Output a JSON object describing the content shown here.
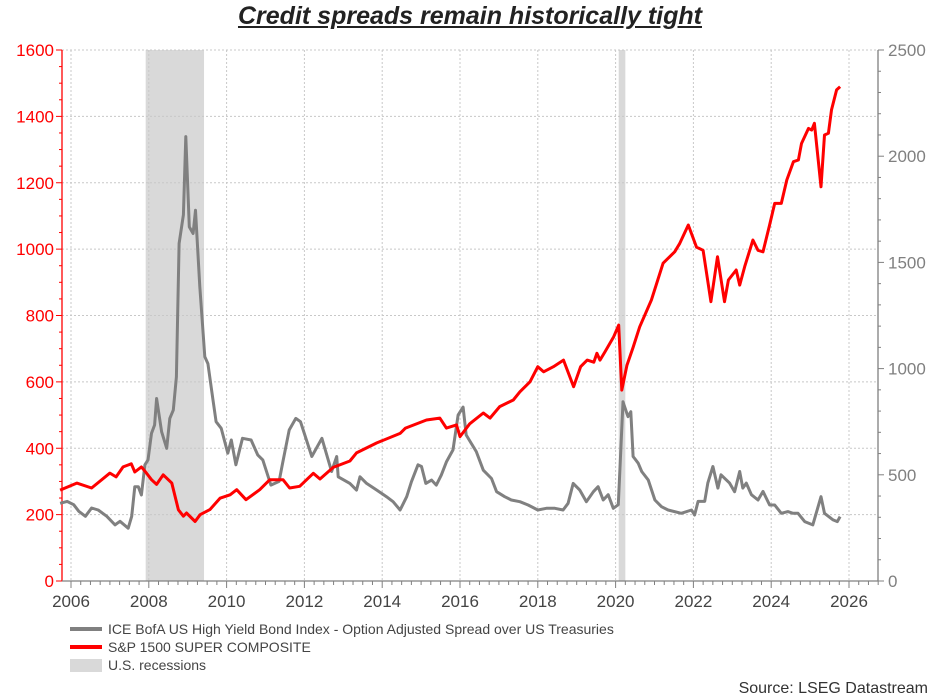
{
  "chart_data": {
    "type": "line",
    "title": "Credit spreads remain historically tight",
    "source": "Source: LSEG Datastream",
    "x_ticks": [
      "2006",
      "2008",
      "2010",
      "2012",
      "2014",
      "2016",
      "2018",
      "2020",
      "2022",
      "2024",
      "2026"
    ],
    "xlim": [
      2005.75,
      2026.8
    ],
    "y_left": {
      "ylim": [
        0,
        1600
      ],
      "ticks": [
        "0",
        "200",
        "400",
        "600",
        "800",
        "1000",
        "1200",
        "1400",
        "1600"
      ],
      "color": "#ff0000"
    },
    "y_right": {
      "ylim": [
        0,
        2500
      ],
      "ticks": [
        "0",
        "500",
        "1000",
        "1500",
        "2000",
        "2500"
      ],
      "color": "#808080"
    },
    "grid": true,
    "legend_placement": "bottom",
    "recessions": [
      {
        "label": "U.S. recessions",
        "start": 2007.92,
        "end": 2009.42,
        "color": "#d9d9d9"
      },
      {
        "start": 2020.08,
        "end": 2020.25
      }
    ],
    "recession_label": "U.S. recessions",
    "series": [
      {
        "name": "ICE BofA US High Yield Bond Index - Option Adjusted Spread over US Treasuries",
        "axis": "left",
        "color": "#808080",
        "x": [
          2005.72,
          2005.9,
          2006.07,
          2006.2,
          2006.37,
          2006.53,
          2006.7,
          2006.92,
          2007.13,
          2007.26,
          2007.47,
          2007.56,
          2007.64,
          2007.73,
          2007.81,
          2007.9,
          2007.98,
          2008.07,
          2008.15,
          2008.2,
          2008.33,
          2008.46,
          2008.54,
          2008.63,
          2008.71,
          2008.78,
          2008.89,
          2008.95,
          2009.04,
          2009.14,
          2009.2,
          2009.31,
          2009.44,
          2009.52,
          2009.65,
          2009.73,
          2009.86,
          2010.03,
          2010.12,
          2010.24,
          2010.41,
          2010.63,
          2010.8,
          2010.93,
          2011.14,
          2011.35,
          2011.44,
          2011.61,
          2011.78,
          2011.9,
          2012.19,
          2012.45,
          2012.7,
          2012.83,
          2012.87,
          2013.17,
          2013.34,
          2013.43,
          2013.6,
          2013.86,
          2014.11,
          2014.28,
          2014.46,
          2014.63,
          2014.75,
          2014.92,
          2015.01,
          2015.12,
          2015.27,
          2015.39,
          2015.52,
          2015.65,
          2015.82,
          2015.95,
          2016.08,
          2016.16,
          2016.42,
          2016.6,
          2016.81,
          2016.94,
          2017.15,
          2017.32,
          2017.54,
          2017.75,
          2018.0,
          2018.22,
          2018.44,
          2018.65,
          2018.78,
          2018.91,
          2019.08,
          2019.25,
          2019.43,
          2019.55,
          2019.68,
          2019.81,
          2019.94,
          2020.07,
          2020.19,
          2020.32,
          2020.39,
          2020.45,
          2020.58,
          2020.67,
          2020.84,
          2021.01,
          2021.18,
          2021.35,
          2021.69,
          2021.95,
          2022.03,
          2022.12,
          2022.29,
          2022.37,
          2022.5,
          2022.63,
          2022.71,
          2022.93,
          2023.06,
          2023.19,
          2023.27,
          2023.36,
          2023.49,
          2023.66,
          2023.79,
          2023.96,
          2024.09,
          2024.26,
          2024.43,
          2024.56,
          2024.69,
          2024.86,
          2025.07,
          2025.28,
          2025.37,
          2025.59,
          2025.7,
          2025.77
        ],
        "values": [
          234,
          240,
          230,
          210,
          195,
          220,
          214,
          195,
          169,
          180,
          159,
          195,
          284,
          284,
          259,
          350,
          365,
          445,
          470,
          550,
          450,
          400,
          490,
          515,
          615,
          1017,
          1103,
          1339,
          1067,
          1047,
          1117,
          887,
          676,
          655,
          545,
          480,
          460,
          385,
          425,
          350,
          430,
          425,
          380,
          365,
          289,
          300,
          355,
          455,
          490,
          480,
          375,
          430,
          330,
          375,
          314,
          294,
          274,
          314,
          294,
          274,
          254,
          239,
          214,
          254,
          299,
          350,
          345,
          294,
          304,
          289,
          319,
          359,
          395,
          500,
          524,
          440,
          390,
          334,
          309,
          269,
          254,
          244,
          239,
          229,
          214,
          219,
          219,
          214,
          234,
          294,
          274,
          239,
          269,
          284,
          244,
          260,
          219,
          230,
          540,
          495,
          510,
          375,
          355,
          330,
          304,
          244,
          224,
          214,
          204,
          214,
          199,
          240,
          240,
          295,
          345,
          280,
          320,
          295,
          269,
          330,
          280,
          295,
          260,
          244,
          270,
          229,
          229,
          204,
          209,
          204,
          204,
          179,
          169,
          254,
          204,
          184,
          179,
          194
        ]
      },
      {
        "name": "S&P 1500 SUPER COMPOSITE",
        "axis": "right",
        "color": "#ff0000",
        "x": [
          2005.72,
          2006.15,
          2006.53,
          2007.0,
          2007.16,
          2007.34,
          2007.55,
          2007.64,
          2007.81,
          2007.94,
          2008.07,
          2008.2,
          2008.37,
          2008.59,
          2008.76,
          2008.89,
          2008.97,
          2009.19,
          2009.32,
          2009.57,
          2009.83,
          2010.09,
          2010.26,
          2010.5,
          2010.85,
          2011.11,
          2011.45,
          2011.62,
          2011.88,
          2012.23,
          2012.4,
          2012.74,
          2013.17,
          2013.34,
          2013.86,
          2014.46,
          2014.6,
          2015.14,
          2015.48,
          2015.65,
          2015.91,
          2016.0,
          2016.25,
          2016.6,
          2016.77,
          2017.02,
          2017.37,
          2017.54,
          2017.8,
          2018.0,
          2018.15,
          2018.4,
          2018.66,
          2018.92,
          2019.1,
          2019.27,
          2019.44,
          2019.52,
          2019.6,
          2019.73,
          2019.95,
          2020.08,
          2020.16,
          2020.29,
          2020.45,
          2020.62,
          2020.92,
          2021.22,
          2021.52,
          2021.65,
          2021.87,
          2022.08,
          2022.25,
          2022.45,
          2022.62,
          2022.8,
          2022.9,
          2023.1,
          2023.19,
          2023.32,
          2023.53,
          2023.66,
          2023.79,
          2023.96,
          2024.09,
          2024.26,
          2024.4,
          2024.57,
          2024.7,
          2024.78,
          2024.96,
          2025.04,
          2025.11,
          2025.28,
          2025.37,
          2025.47,
          2025.55,
          2025.68,
          2025.77
        ],
        "values": [
          428,
          461,
          438,
          508,
          490,
          537,
          552,
          513,
          537,
          508,
          477,
          455,
          500,
          461,
          335,
          305,
          320,
          280,
          312,
          336,
          390,
          406,
          430,
          383,
          430,
          477,
          477,
          438,
          446,
          507,
          480,
          535,
          565,
          603,
          650,
          695,
          720,
          758,
          767,
          720,
          735,
          680,
          740,
          791,
          767,
          821,
          852,
          891,
          938,
          1009,
          985,
          1009,
          1040,
          915,
          1009,
          1040,
          1030,
          1072,
          1040,
          1080,
          1150,
          1205,
          899,
          1015,
          1100,
          1197,
          1323,
          1496,
          1550,
          1590,
          1676,
          1572,
          1557,
          1315,
          1527,
          1315,
          1417,
          1464,
          1393,
          1480,
          1605,
          1557,
          1550,
          1676,
          1778,
          1778,
          1888,
          1974,
          1982,
          2060,
          2131,
          2123,
          2155,
          1856,
          2100,
          2108,
          2218,
          2312,
          2327
        ]
      }
    ]
  }
}
